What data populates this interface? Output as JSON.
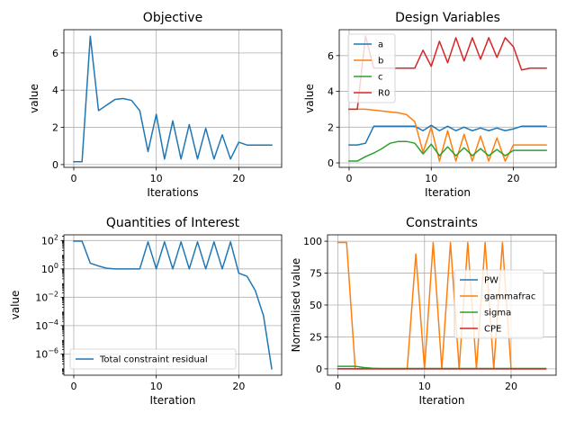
{
  "chart_data": [
    {
      "type": "line",
      "title": "Objective",
      "xlabel": "Iterations",
      "ylabel": "value",
      "xlim": [
        -1.2,
        25.2
      ],
      "ylim": [
        -0.15,
        7.25
      ],
      "xticks": [
        0,
        10,
        20
      ],
      "yticks": [
        0,
        2,
        4,
        6
      ],
      "yscale": "linear",
      "grid": true,
      "legend": null,
      "series": [
        {
          "name": "",
          "color": "#1f77b4",
          "x": [
            0,
            1,
            2,
            3,
            4,
            5,
            6,
            7,
            8,
            9,
            10,
            11,
            12,
            13,
            14,
            15,
            16,
            17,
            18,
            19,
            20,
            21,
            22,
            23,
            24
          ],
          "y": [
            0.15,
            0.15,
            6.9,
            2.9,
            3.2,
            3.5,
            3.55,
            3.45,
            2.9,
            0.7,
            2.7,
            0.3,
            2.35,
            0.3,
            2.15,
            0.3,
            1.95,
            0.3,
            1.6,
            0.3,
            1.2,
            1.05,
            1.05,
            1.05,
            1.05
          ]
        }
      ]
    },
    {
      "type": "line",
      "title": "Design Variables",
      "xlabel": "Iteration",
      "ylabel": "value",
      "xlim": [
        -1.2,
        25.2
      ],
      "ylim": [
        -0.25,
        7.45
      ],
      "xticks": [
        0,
        10,
        20
      ],
      "yticks": [
        0,
        2,
        4,
        6
      ],
      "yscale": "linear",
      "grid": true,
      "legend": "top-left",
      "series": [
        {
          "name": "a",
          "color": "#1f77b4",
          "x": [
            0,
            1,
            2,
            3,
            4,
            5,
            6,
            7,
            8,
            9,
            10,
            11,
            12,
            13,
            14,
            15,
            16,
            17,
            18,
            19,
            20,
            21,
            22,
            23,
            24
          ],
          "y": [
            1.0,
            1.0,
            1.1,
            2.05,
            2.05,
            2.05,
            2.05,
            2.05,
            2.05,
            1.8,
            2.1,
            1.8,
            2.05,
            1.8,
            2.0,
            1.8,
            1.95,
            1.8,
            1.95,
            1.8,
            1.9,
            2.05,
            2.05,
            2.05,
            2.05
          ]
        },
        {
          "name": "b",
          "color": "#ff7f0e",
          "x": [
            0,
            1,
            2,
            3,
            4,
            5,
            6,
            7,
            8,
            9,
            10,
            11,
            12,
            13,
            14,
            15,
            16,
            17,
            18,
            19,
            20,
            21,
            22,
            23,
            24
          ],
          "y": [
            3.0,
            3.0,
            3.0,
            2.95,
            2.9,
            2.85,
            2.8,
            2.7,
            2.3,
            0.6,
            2.0,
            0.1,
            1.8,
            0.1,
            1.6,
            0.1,
            1.5,
            0.1,
            1.4,
            0.1,
            1.0,
            1.0,
            1.0,
            1.0,
            1.0
          ]
        },
        {
          "name": "c",
          "color": "#2ca02c",
          "x": [
            0,
            1,
            2,
            3,
            4,
            5,
            6,
            7,
            8,
            9,
            10,
            11,
            12,
            13,
            14,
            15,
            16,
            17,
            18,
            19,
            20,
            21,
            22,
            23,
            24
          ],
          "y": [
            0.1,
            0.1,
            0.35,
            0.55,
            0.8,
            1.1,
            1.2,
            1.2,
            1.1,
            0.5,
            1.05,
            0.4,
            0.9,
            0.4,
            0.85,
            0.4,
            0.8,
            0.4,
            0.75,
            0.4,
            0.7,
            0.7,
            0.7,
            0.7,
            0.7
          ]
        },
        {
          "name": "R0",
          "color": "#d62728",
          "x": [
            0,
            1,
            2,
            3,
            4,
            5,
            6,
            7,
            8,
            9,
            10,
            11,
            12,
            13,
            14,
            15,
            16,
            17,
            18,
            19,
            20,
            21,
            22,
            23,
            24
          ],
          "y": [
            3.0,
            3.0,
            7.1,
            5.3,
            5.3,
            5.3,
            5.3,
            5.3,
            5.3,
            6.3,
            5.4,
            6.8,
            5.6,
            7.0,
            5.7,
            7.0,
            5.8,
            7.0,
            5.9,
            7.0,
            6.5,
            5.2,
            5.3,
            5.3,
            5.3
          ]
        }
      ]
    },
    {
      "type": "line",
      "title": "Quantities of Interest",
      "xlabel": "Iteration",
      "ylabel": "value",
      "xlim": [
        -1.2,
        25.2
      ],
      "ylim_log10": [
        -7.5,
        2.4
      ],
      "xticks": [
        0,
        10,
        20
      ],
      "yticks_log10": [
        -6,
        -4,
        -2,
        0,
        2
      ],
      "ytick_base": "10",
      "yscale": "log",
      "grid": true,
      "legend": "bottom-left",
      "series": [
        {
          "name": "Total constraint residual",
          "color": "#1f77b4",
          "x": [
            0,
            1,
            2,
            3,
            4,
            5,
            6,
            7,
            8,
            9,
            10,
            11,
            12,
            13,
            14,
            15,
            16,
            17,
            18,
            19,
            20,
            21,
            22,
            23,
            24
          ],
          "y": [
            90,
            90,
            2.5,
            1.6,
            1.1,
            1.0,
            1.0,
            1.0,
            1.0,
            80,
            1.0,
            80,
            1.0,
            80,
            1.0,
            80,
            1.0,
            80,
            1.0,
            80,
            0.5,
            0.3,
            0.03,
            0.0005,
            9e-08
          ]
        }
      ]
    },
    {
      "type": "line",
      "title": "Constraints",
      "xlabel": "Iteration",
      "ylabel": "Normalised value",
      "xlim": [
        -1.2,
        25.2
      ],
      "ylim": [
        -5,
        105
      ],
      "xticks": [
        0,
        10,
        20
      ],
      "yticks": [
        0,
        25,
        50,
        75,
        100
      ],
      "yscale": "linear",
      "grid": true,
      "legend": "center-right",
      "series": [
        {
          "name": "PW",
          "color": "#1f77b4",
          "x": [
            0,
            1,
            2,
            3,
            4,
            5,
            6,
            7,
            8,
            9,
            10,
            11,
            12,
            13,
            14,
            15,
            16,
            17,
            18,
            19,
            20,
            21,
            22,
            23,
            24
          ],
          "y": [
            0,
            0,
            0,
            0,
            0,
            0,
            0,
            0,
            0,
            0,
            0,
            0,
            0,
            0,
            0,
            0,
            0,
            0,
            0,
            0,
            0,
            0,
            0,
            0,
            0
          ]
        },
        {
          "name": "gammafrac",
          "color": "#ff7f0e",
          "x": [
            0,
            1,
            2,
            3,
            4,
            5,
            6,
            7,
            8,
            9,
            10,
            11,
            12,
            13,
            14,
            15,
            16,
            17,
            18,
            19,
            20,
            21,
            22,
            23,
            24
          ],
          "y": [
            99,
            99,
            0,
            0,
            0,
            0,
            0,
            0,
            0,
            90,
            0,
            99,
            0,
            99,
            0,
            99,
            0,
            99,
            0,
            99,
            0,
            0,
            0,
            0,
            0
          ]
        },
        {
          "name": "sigma",
          "color": "#2ca02c",
          "x": [
            0,
            1,
            2,
            3,
            4,
            5,
            6,
            7,
            8,
            9,
            10,
            11,
            12,
            13,
            14,
            15,
            16,
            17,
            18,
            19,
            20,
            21,
            22,
            23,
            24
          ],
          "y": [
            2,
            2,
            2,
            1,
            0.5,
            0.3,
            0.3,
            0.3,
            0.3,
            0.3,
            0.3,
            0.3,
            0.3,
            0.3,
            0.3,
            0.3,
            0.3,
            0.3,
            0.3,
            0.3,
            0.3,
            0.3,
            0.3,
            0.3,
            0.3
          ]
        },
        {
          "name": "CPE",
          "color": "#d62728",
          "x": [
            0,
            1,
            2,
            3,
            4,
            5,
            6,
            7,
            8,
            9,
            10,
            11,
            12,
            13,
            14,
            15,
            16,
            17,
            18,
            19,
            20,
            21,
            22,
            23,
            24
          ],
          "y": [
            0,
            0,
            0,
            0,
            0,
            0,
            0,
            0,
            0,
            0,
            0,
            0,
            0,
            0,
            0,
            0,
            0,
            0,
            0,
            0,
            0,
            0,
            0,
            0,
            0
          ]
        }
      ]
    }
  ]
}
